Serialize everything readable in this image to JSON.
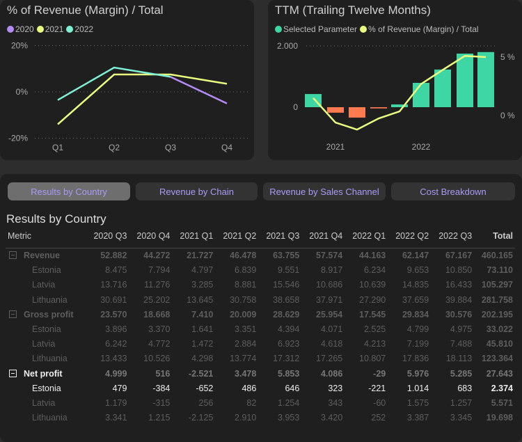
{
  "chart_left": {
    "title": "% of Revenue (Margin) / Total",
    "type": "line",
    "legend": [
      {
        "label": "2020",
        "color": "#b48cf5"
      },
      {
        "label": "2021",
        "color": "#eafd7e"
      },
      {
        "label": "2022",
        "color": "#7ef0d6"
      }
    ],
    "y_ticks": [
      "20%",
      "0%",
      "-20%"
    ],
    "x_ticks": [
      "Q1",
      "Q2",
      "Q3",
      "Q4"
    ],
    "series": [
      {
        "name": "2020",
        "values": [
          null,
          null,
          6.5,
          -5
        ]
      },
      {
        "name": "2021",
        "values": [
          -14,
          7.5,
          7.5,
          3.5
        ]
      },
      {
        "name": "2022",
        "values": [
          -3.5,
          10.5,
          6.5,
          null
        ]
      }
    ]
  },
  "chart_right": {
    "title": "TTM (Trailing Twelve Months)",
    "legend": [
      {
        "label": "Selected Parameter",
        "color": "#3fd6a6"
      },
      {
        "label": "% of Revenue (Margin) / Total",
        "color": "#eafd7e"
      }
    ],
    "left_ticks": [
      "2.000",
      "0"
    ],
    "right_ticks": [
      "5 %",
      "0 %"
    ],
    "x_labels": [
      "2021",
      "2022"
    ],
    "bars": [
      430,
      -180,
      -340,
      -40,
      90,
      795,
      1230,
      1750,
      1800
    ],
    "line": [
      1.5,
      -0.6,
      -1.2,
      -0.25,
      0.35,
      2.7,
      3.9,
      5.1,
      5.0
    ],
    "pos_color": "#3fd6a6",
    "neg_color": "#fd7b4f"
  },
  "tabs": [
    "Results by Country",
    "Revenue by Chain",
    "Revenue by Sales Channel",
    "Cost Breakdown"
  ],
  "table": {
    "title": "Results by Country",
    "columns": [
      "Metric",
      "2020 Q3",
      "2020 Q4",
      "2021 Q1",
      "2021 Q2",
      "2021 Q3",
      "2021 Q4",
      "2022 Q1",
      "2022 Q2",
      "2022 Q3",
      "Total"
    ],
    "rows": [
      {
        "type": "parent",
        "label": "Revenue",
        "values": [
          "52.882",
          "44.272",
          "21.727",
          "46.478",
          "63.755",
          "57.574",
          "44.163",
          "62.147",
          "67.167",
          "460.165"
        ]
      },
      {
        "type": "child",
        "label": "Estonia",
        "values": [
          "8.475",
          "7.794",
          "4.797",
          "6.839",
          "9.551",
          "8.917",
          "6.234",
          "9.653",
          "10.850",
          "73.110"
        ]
      },
      {
        "type": "child",
        "label": "Latvia",
        "values": [
          "13.716",
          "11.276",
          "3.285",
          "8.881",
          "15.546",
          "10.686",
          "10.639",
          "14.835",
          "16.433",
          "105.297"
        ]
      },
      {
        "type": "child",
        "label": "Lithuania",
        "values": [
          "30.691",
          "25.202",
          "13.645",
          "30.758",
          "38.658",
          "37.971",
          "27.290",
          "37.659",
          "39.884",
          "281.758"
        ]
      },
      {
        "type": "parent",
        "label": "Gross profit",
        "values": [
          "23.570",
          "18.668",
          "7.410",
          "20.009",
          "28.629",
          "25.954",
          "17.545",
          "29.834",
          "30.576",
          "202.195"
        ]
      },
      {
        "type": "child",
        "label": "Estonia",
        "values": [
          "3.896",
          "3.370",
          "1.641",
          "3.351",
          "4.394",
          "4.071",
          "2.525",
          "4.799",
          "4.975",
          "33.022"
        ]
      },
      {
        "type": "child",
        "label": "Latvia",
        "values": [
          "6.242",
          "4.772",
          "1.472",
          "2.884",
          "6.923",
          "4.618",
          "4.213",
          "7.199",
          "7.488",
          "45.810"
        ]
      },
      {
        "type": "child",
        "label": "Lithuania",
        "values": [
          "13.433",
          "10.526",
          "4.298",
          "13.774",
          "17.312",
          "17.265",
          "10.807",
          "17.836",
          "18.113",
          "123.364"
        ]
      },
      {
        "type": "parent",
        "label": "Net profit",
        "hl": "label",
        "values": [
          "4.999",
          "516",
          "-2.521",
          "3.478",
          "5.853",
          "4.086",
          "-29",
          "5.976",
          "5.285",
          "27.643"
        ]
      },
      {
        "type": "child",
        "label": "Estonia",
        "hl": "row",
        "values": [
          "479",
          "-384",
          "-652",
          "486",
          "646",
          "323",
          "-221",
          "1.014",
          "683",
          "2.374"
        ]
      },
      {
        "type": "child",
        "label": "Latvia",
        "values": [
          "1.179",
          "-315",
          "256",
          "82",
          "1.254",
          "343",
          "-60",
          "1.575",
          "1.257",
          "5.571"
        ]
      },
      {
        "type": "child",
        "label": "Lithuania",
        "values": [
          "3.341",
          "1.215",
          "-2.125",
          "2.910",
          "3.953",
          "3.420",
          "252",
          "3.387",
          "3.345",
          "19.698"
        ]
      }
    ]
  }
}
